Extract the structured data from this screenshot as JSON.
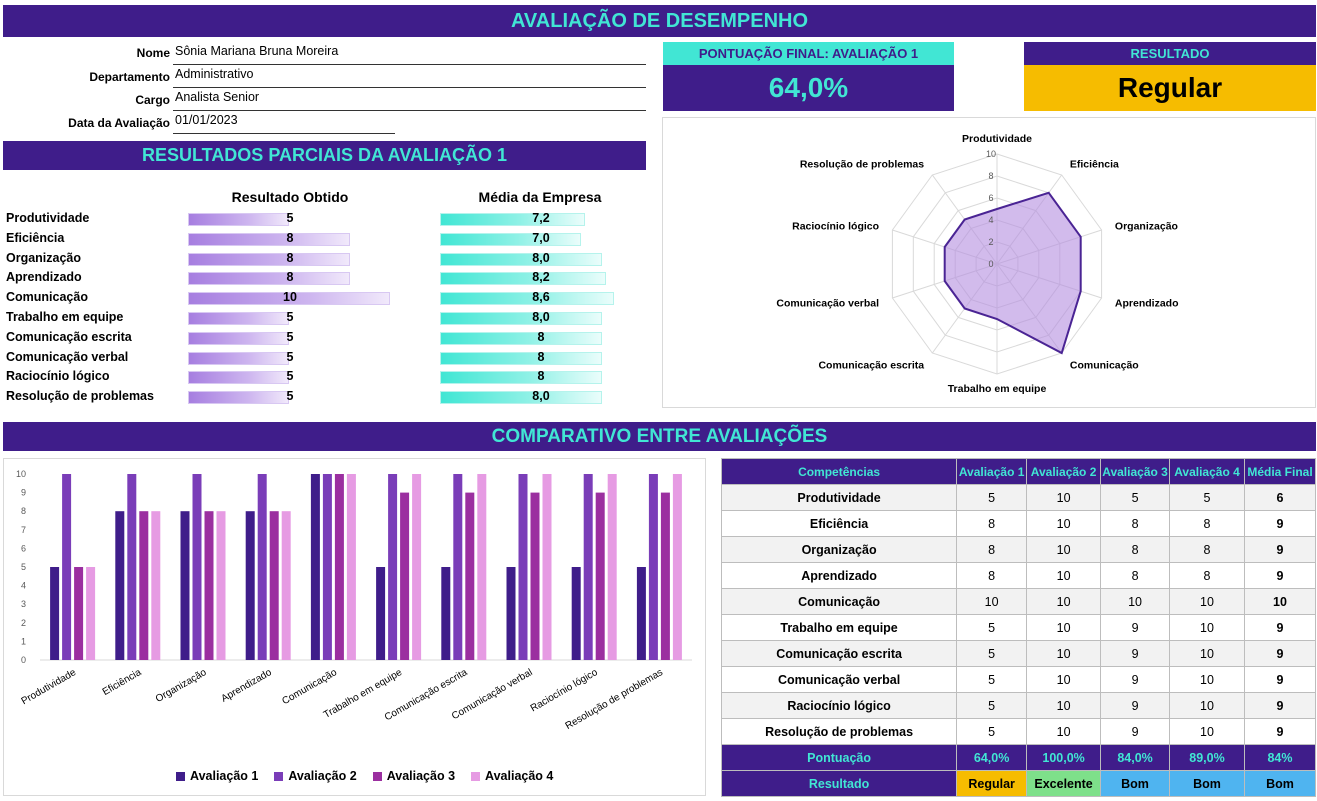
{
  "header": {
    "title": "AVALIAÇÃO DE DESEMPENHO"
  },
  "employee": {
    "fields": [
      {
        "label": "Nome",
        "value": "Sônia Mariana Bruna Moreira"
      },
      {
        "label": "Departamento",
        "value": "Administrativo"
      },
      {
        "label": "Cargo",
        "value": "Analista Senior"
      },
      {
        "label": "Data da Avaliação",
        "value": "01/01/2023"
      }
    ]
  },
  "score_box": {
    "title": "PONTUAÇÃO FINAL: AVALIAÇÃO 1",
    "value": "64,0%"
  },
  "result_box": {
    "title": "RESULTADO",
    "value": "Regular"
  },
  "partial": {
    "title": "RESULTADOS PARCIAIS DA AVALIAÇÃO 1",
    "col_obtained": "Resultado Obtido",
    "col_company": "Média da Empresa",
    "max": 10,
    "rows": [
      {
        "label": "Produtividade",
        "obtained": 5,
        "obtained_text": "5",
        "company": 7.2,
        "company_text": "7,2"
      },
      {
        "label": "Eficiência",
        "obtained": 8,
        "obtained_text": "8",
        "company": 7.0,
        "company_text": "7,0"
      },
      {
        "label": "Organização",
        "obtained": 8,
        "obtained_text": "8",
        "company": 8.0,
        "company_text": "8,0"
      },
      {
        "label": "Aprendizado",
        "obtained": 8,
        "obtained_text": "8",
        "company": 8.2,
        "company_text": "8,2"
      },
      {
        "label": "Comunicação",
        "obtained": 10,
        "obtained_text": "10",
        "company": 8.6,
        "company_text": "8,6"
      },
      {
        "label": "Trabalho em equipe",
        "obtained": 5,
        "obtained_text": "5",
        "company": 8.0,
        "company_text": "8,0"
      },
      {
        "label": "Comunicação escrita",
        "obtained": 5,
        "obtained_text": "5",
        "company": 8,
        "company_text": "8"
      },
      {
        "label": "Comunicação verbal",
        "obtained": 5,
        "obtained_text": "5",
        "company": 8,
        "company_text": "8"
      },
      {
        "label": "Raciocínio lógico",
        "obtained": 5,
        "obtained_text": "5",
        "company": 8,
        "company_text": "8"
      },
      {
        "label": "Resolução de problemas",
        "obtained": 5,
        "obtained_text": "5",
        "company": 8.0,
        "company_text": "8,0"
      }
    ]
  },
  "comparison": {
    "title": "COMPARATIVO ENTRE AVALIAÇÕES"
  },
  "table": {
    "headers": [
      "Competências",
      "Avaliação 1",
      "Avaliação 2",
      "Avaliação 3",
      "Avaliação 4",
      "Média Final"
    ],
    "rows": [
      [
        "Produtividade",
        "5",
        "10",
        "5",
        "5",
        "6"
      ],
      [
        "Eficiência",
        "8",
        "10",
        "8",
        "8",
        "9"
      ],
      [
        "Organização",
        "8",
        "10",
        "8",
        "8",
        "9"
      ],
      [
        "Aprendizado",
        "8",
        "10",
        "8",
        "8",
        "9"
      ],
      [
        "Comunicação",
        "10",
        "10",
        "10",
        "10",
        "10"
      ],
      [
        "Trabalho em equipe",
        "5",
        "10",
        "9",
        "10",
        "9"
      ],
      [
        "Comunicação escrita",
        "5",
        "10",
        "9",
        "10",
        "9"
      ],
      [
        "Comunicação verbal",
        "5",
        "10",
        "9",
        "10",
        "9"
      ],
      [
        "Raciocínio lógico",
        "5",
        "10",
        "9",
        "10",
        "9"
      ],
      [
        "Resolução de problemas",
        "5",
        "10",
        "9",
        "10",
        "9"
      ]
    ],
    "score_row": [
      "Pontuação",
      "64,0%",
      "100,0%",
      "84,0%",
      "89,0%",
      "84%"
    ],
    "result_row": [
      "Resultado",
      "Regular",
      "Excelente",
      "Bom",
      "Bom",
      "Bom"
    ]
  },
  "colors": {
    "banner_bg": "#3f1d8a",
    "banner_text": "#41e6d4",
    "result_bg": "#f6bc00",
    "eval1": "#3f1d8a",
    "eval2": "#7a3db8",
    "eval3": "#9b2fa0",
    "eval4": "#e69be3"
  },
  "chart_data": [
    {
      "type": "radar",
      "categories": [
        "Produtividade",
        "Eficiência",
        "Organização",
        "Aprendizado",
        "Comunicação",
        "Trabalho em equipe",
        "Comunicação escrita",
        "Comunicação verbal",
        "Raciocínio lógico",
        "Resolução de problemas"
      ],
      "series": [
        {
          "values": [
            5,
            8,
            8,
            8,
            10,
            5,
            5,
            5,
            5,
            5
          ]
        }
      ],
      "ticks": [
        "0",
        "2",
        "4",
        "6",
        "8",
        "10"
      ],
      "ylim": [
        0,
        10
      ]
    },
    {
      "type": "bar",
      "categories": [
        "Produtividade",
        "Eficiência",
        "Organização",
        "Aprendizado",
        "Comunicação",
        "Trabalho em equipe",
        "Comunicação escrita",
        "Comunicação verbal",
        "Raciocínio lógico",
        "Resolução de problemas"
      ],
      "series": [
        {
          "name": "Avaliação 1",
          "values": [
            5,
            8,
            8,
            8,
            10,
            5,
            5,
            5,
            5,
            5
          ]
        },
        {
          "name": "Avaliação 2",
          "values": [
            10,
            10,
            10,
            10,
            10,
            10,
            10,
            10,
            10,
            10
          ]
        },
        {
          "name": "Avaliação 3",
          "values": [
            5,
            8,
            8,
            8,
            10,
            9,
            9,
            9,
            9,
            9
          ]
        },
        {
          "name": "Avaliação 4",
          "values": [
            5,
            8,
            8,
            8,
            10,
            10,
            10,
            10,
            10,
            10
          ]
        }
      ],
      "yticks": [
        "0",
        "1",
        "2",
        "3",
        "4",
        "5",
        "6",
        "7",
        "8",
        "9",
        "10"
      ],
      "ylim": [
        0,
        10
      ],
      "legend": "bottom"
    }
  ]
}
